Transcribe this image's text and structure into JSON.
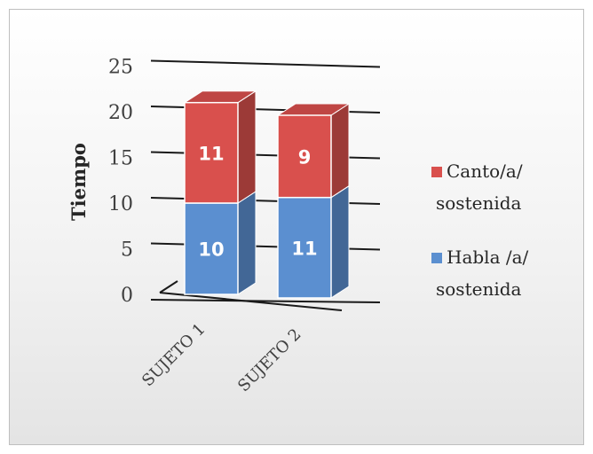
{
  "chart_data": {
    "type": "bar",
    "stacked": true,
    "three_d": true,
    "categories": [
      "SUJETO 1",
      "SUJETO 2"
    ],
    "series": [
      {
        "name": [
          "Habla /a/",
          "sostenida"
        ],
        "values": [
          10,
          11
        ],
        "color": "#5b8fd0",
        "label_color": "#ffffff"
      },
      {
        "name": [
          "Canto/a/",
          "sostenida"
        ],
        "values": [
          11,
          9
        ],
        "color": "#d9504d",
        "label_color": "#ffffff"
      }
    ],
    "ylabel": "Tiempo",
    "xlabel": "",
    "title": "",
    "ylim": [
      0,
      25
    ],
    "yticks": [
      0,
      5,
      10,
      15,
      20,
      25
    ],
    "grid": true,
    "legend_position": "right"
  }
}
